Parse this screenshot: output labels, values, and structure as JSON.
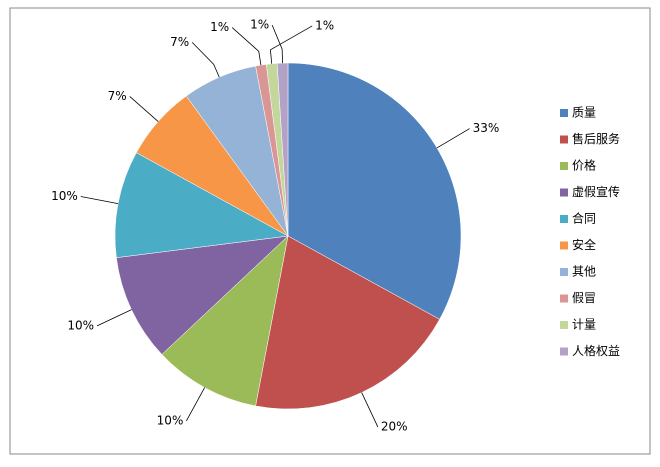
{
  "chart_data": {
    "type": "pie",
    "categories": [
      "质量",
      "售后服务",
      "价格",
      "虚假宣传",
      "合同",
      "安全",
      "其他",
      "假冒",
      "计量",
      "人格权益"
    ],
    "values": [
      33,
      20,
      10,
      10,
      10,
      7,
      7,
      1,
      1,
      1
    ],
    "value_labels": [
      "33%",
      "20%",
      "10%",
      "10%",
      "10%",
      "7%",
      "7%",
      "1%",
      "1%",
      "1%"
    ],
    "colors": [
      "#4F81BD",
      "#C0504D",
      "#9BBB59",
      "#8064A2",
      "#4BACC6",
      "#F79646",
      "#95B3D7",
      "#D99694",
      "#C3D69B",
      "#B3A2C7"
    ],
    "legend": "right"
  }
}
